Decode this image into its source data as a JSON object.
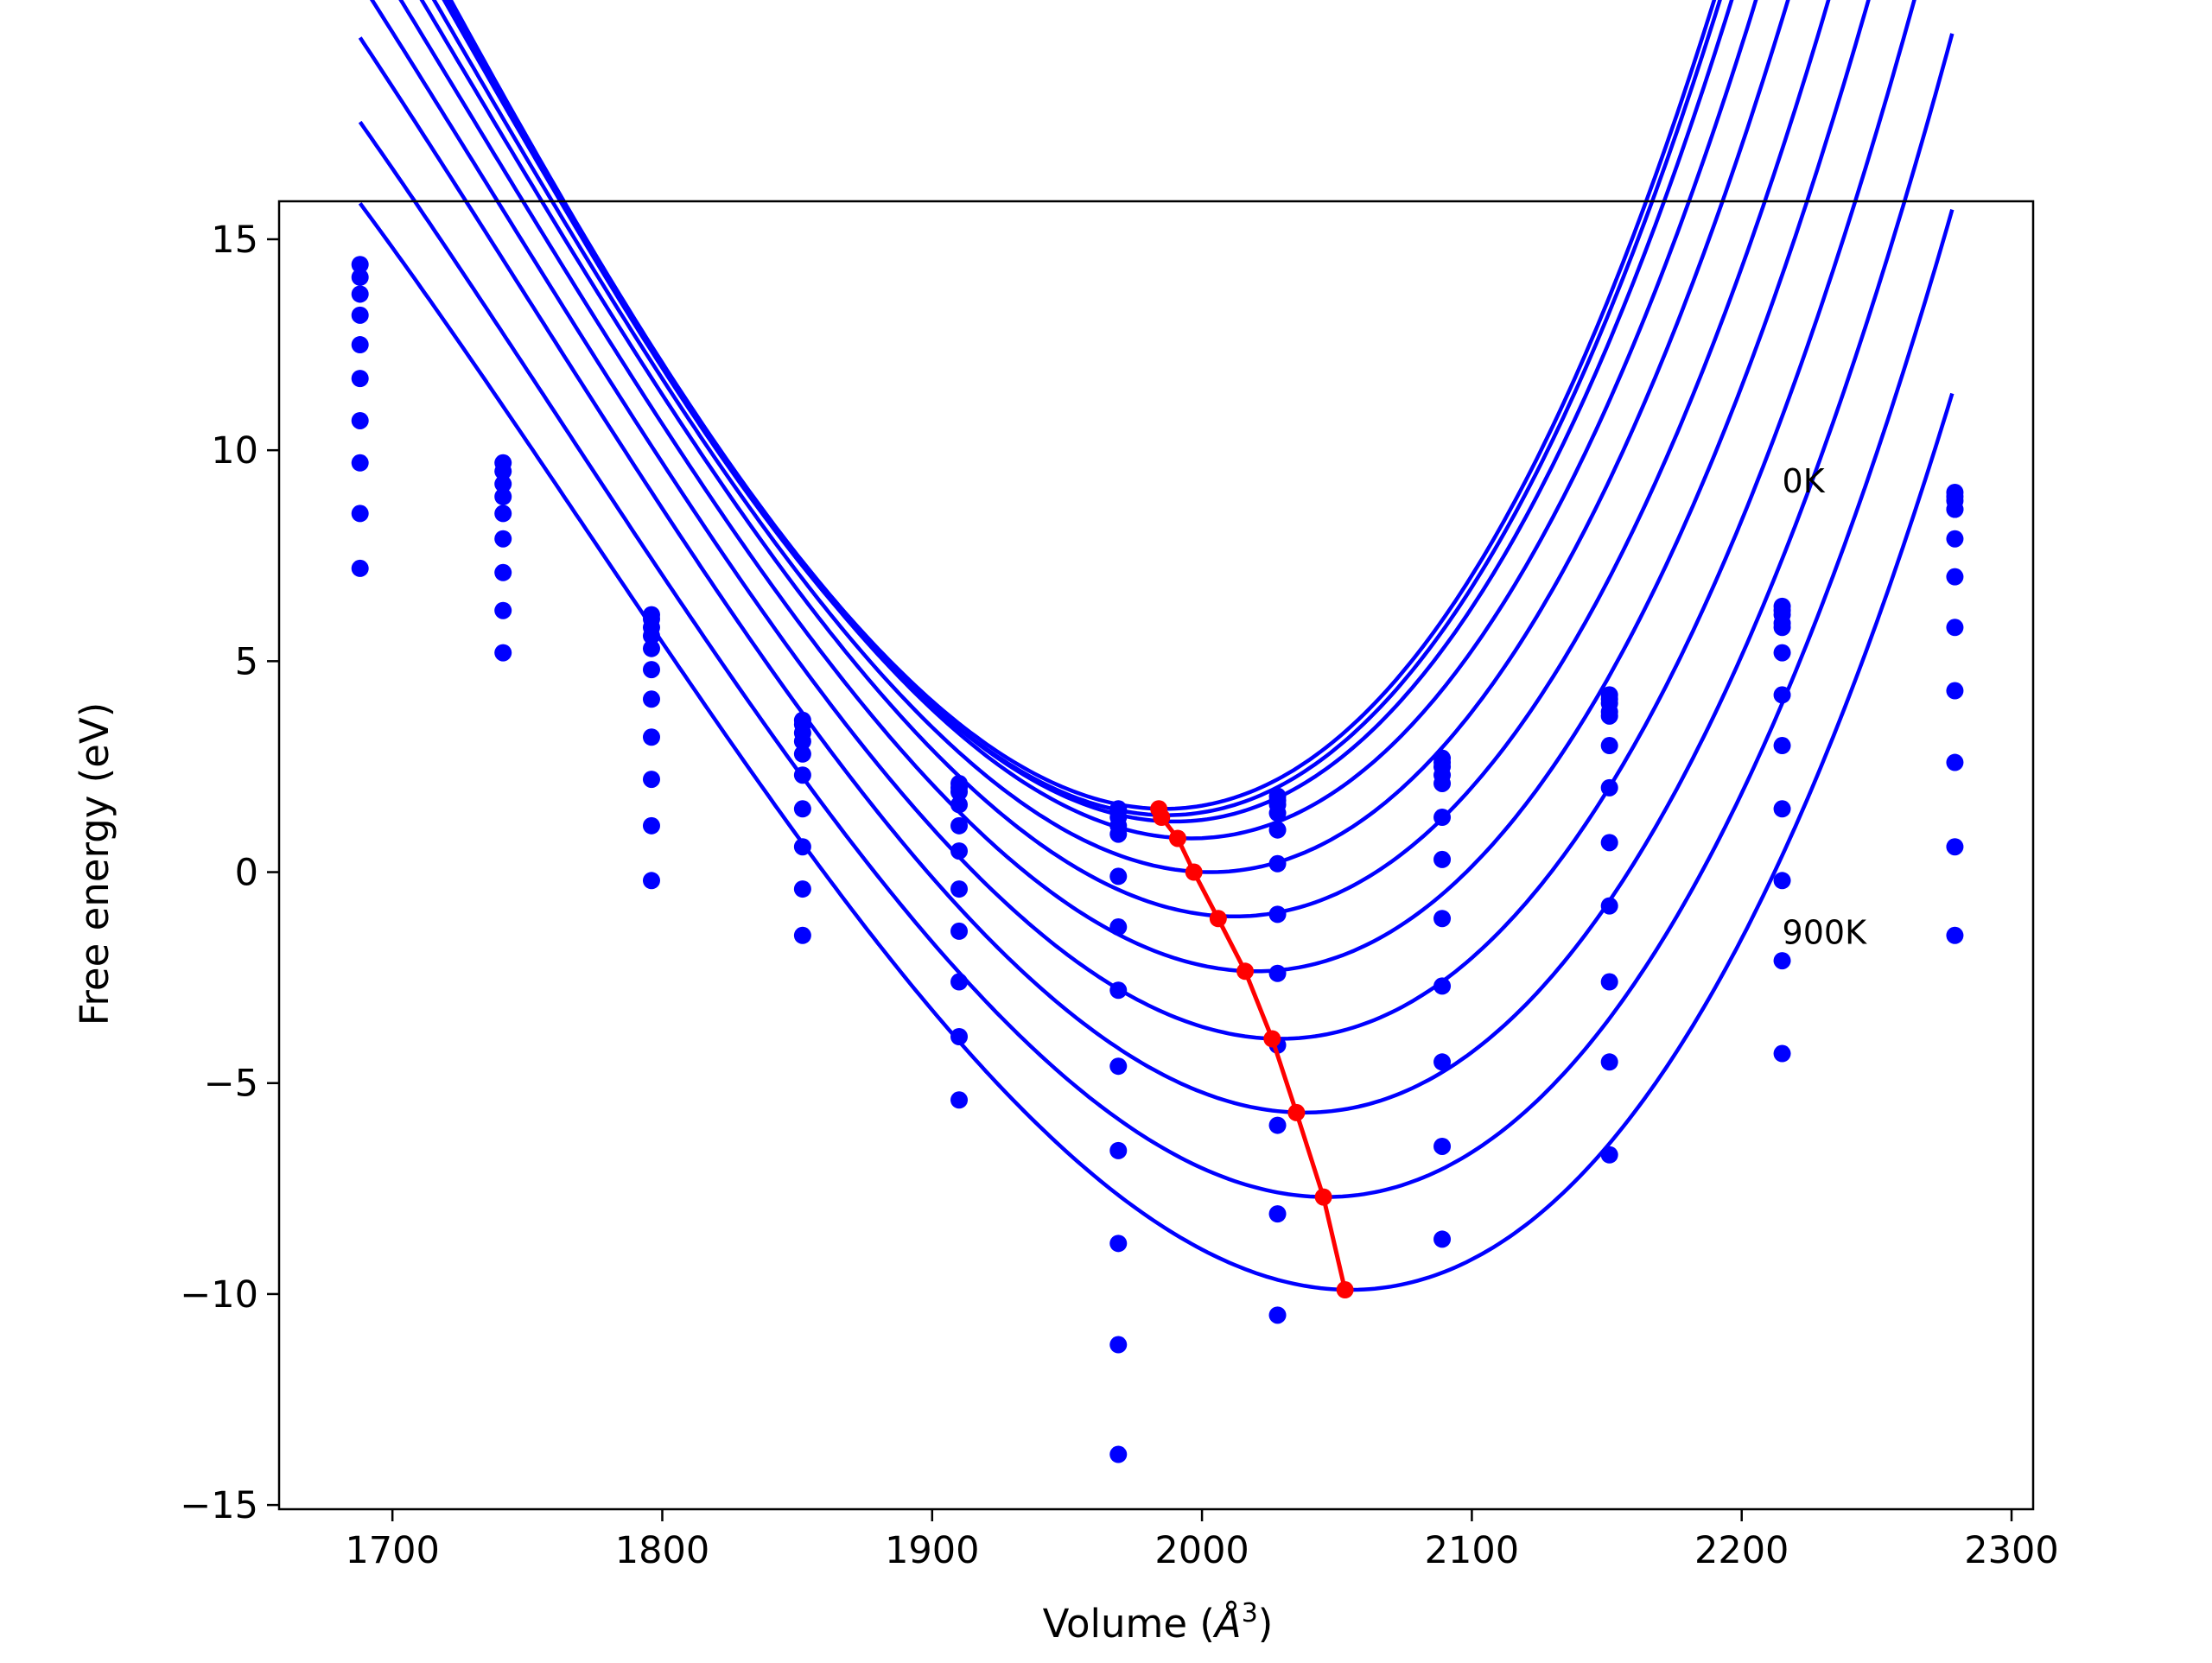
{
  "chart_data": {
    "type": "line",
    "title": "",
    "xlabel_main": "Volume (",
    "xlabel_unit": "Å",
    "xlabel_sup": "3",
    "xlabel_close": ")",
    "ylabel": "Free energy (eV)",
    "xlim": [
      1658,
      2308
    ],
    "ylim": [
      -15.1,
      15.9
    ],
    "xticks": [
      1700,
      1800,
      1900,
      2000,
      2100,
      2200,
      2300
    ],
    "xtick_labels": [
      "1700",
      "1800",
      "1900",
      "2000",
      "2100",
      "2200",
      "2300"
    ],
    "yticks": [
      -15,
      -10,
      -5,
      0,
      5,
      10,
      15
    ],
    "ytick_labels": [
      "−15",
      "−10",
      "−5",
      "0",
      "5",
      "10",
      "15"
    ],
    "grid": false,
    "volumes": [
      1688,
      1741,
      1796,
      1852,
      1910,
      1969,
      2028,
      2089,
      2151,
      2215,
      2279
    ],
    "points_y": [
      [
        14.4,
        9.7,
        6.1,
        3.6,
        2.1,
        1.5,
        1.8,
        2.7,
        4.2,
        6.3,
        9.0
      ],
      [
        14.1,
        9.5,
        6.0,
        3.5,
        2.0,
        1.45,
        1.7,
        2.6,
        4.1,
        6.2,
        8.9
      ],
      [
        13.7,
        9.2,
        5.8,
        3.3,
        1.9,
        1.3,
        1.6,
        2.5,
        4.0,
        6.1,
        8.8
      ],
      [
        13.2,
        8.9,
        5.6,
        3.1,
        1.6,
        1.1,
        1.4,
        2.3,
        3.8,
        5.9,
        8.6
      ],
      [
        12.5,
        8.5,
        5.3,
        2.8,
        1.1,
        0.9,
        1.0,
        2.1,
        3.7,
        5.8,
        8.6
      ],
      [
        11.7,
        7.9,
        4.8,
        2.3,
        0.5,
        -0.1,
        0.2,
        1.3,
        3.0,
        5.2,
        7.9
      ],
      [
        10.7,
        7.1,
        4.1,
        1.5,
        -0.4,
        -1.3,
        -1.0,
        0.3,
        2.0,
        4.2,
        7.0
      ],
      [
        9.7,
        6.2,
        3.2,
        0.6,
        -1.4,
        -2.8,
        -2.4,
        -1.1,
        0.7,
        3.0,
        5.8
      ],
      [
        8.5,
        5.2,
        2.2,
        -0.4,
        -2.6,
        -4.6,
        -4.1,
        -2.7,
        -0.8,
        1.5,
        4.3
      ],
      [
        7.2,
        null,
        1.1,
        -1.5,
        -3.9,
        -6.6,
        -6.0,
        -4.5,
        -2.6,
        -0.2,
        2.6
      ],
      [
        null,
        null,
        -0.2,
        null,
        -5.4,
        -8.8,
        -8.1,
        -6.5,
        -4.5,
        -2.1,
        0.6
      ],
      [
        null,
        null,
        null,
        null,
        null,
        -11.2,
        -10.5,
        -8.7,
        -6.7,
        -4.3,
        -1.5
      ],
      [
        null,
        null,
        null,
        null,
        null,
        -13.8,
        null,
        null,
        null,
        null,
        null
      ]
    ],
    "curves": [
      {
        "v0": 1986,
        "emin": 1.5,
        "a": 0.00038,
        "b": 4e-07,
        "v_start": 1688
      },
      {
        "v0": 1987,
        "emin": 1.35,
        "a": 0.000378,
        "b": 4e-07,
        "v_start": 1688
      },
      {
        "v0": 1990,
        "emin": 1.2,
        "a": 0.000375,
        "b": 4e-07,
        "v_start": 1688
      },
      {
        "v0": 1996,
        "emin": 0.8,
        "a": 0.00037,
        "b": 4e-07,
        "v_start": 1688
      },
      {
        "v0": 2003,
        "emin": 0.0,
        "a": 0.000365,
        "b": 4e-07,
        "v_start": 1688
      },
      {
        "v0": 2012,
        "emin": -1.05,
        "a": 0.00036,
        "b": 4e-07,
        "v_start": 1688
      },
      {
        "v0": 2020,
        "emin": -2.35,
        "a": 0.000356,
        "b": 4e-07,
        "v_start": 1688
      },
      {
        "v0": 2029,
        "emin": -3.95,
        "a": 0.000352,
        "b": 4e-07,
        "v_start": 1688
      },
      {
        "v0": 2038,
        "emin": -5.7,
        "a": 0.000348,
        "b": 4e-07,
        "v_start": 1688
      },
      {
        "v0": 2046,
        "emin": -7.7,
        "a": 0.000342,
        "b": 4e-07,
        "v_start": 1688
      },
      {
        "v0": 2055,
        "emin": -9.9,
        "a": 0.000338,
        "b": 4e-07,
        "v_start": 1688
      }
    ],
    "minima_line": {
      "color": "#ff0000",
      "x": [
        1984,
        1985,
        1991,
        1997,
        2006,
        2016,
        2026,
        2035,
        2045,
        2053
      ],
      "y": [
        1.5,
        1.3,
        0.8,
        0.0,
        -1.1,
        -2.35,
        -3.95,
        -5.7,
        -7.7,
        -9.9
      ]
    },
    "annotations": [
      {
        "text": "0K",
        "x": 2215,
        "y": 9.0
      },
      {
        "text": "900K",
        "x": 2215,
        "y": -1.7
      }
    ],
    "series_color": "#0000ff"
  }
}
